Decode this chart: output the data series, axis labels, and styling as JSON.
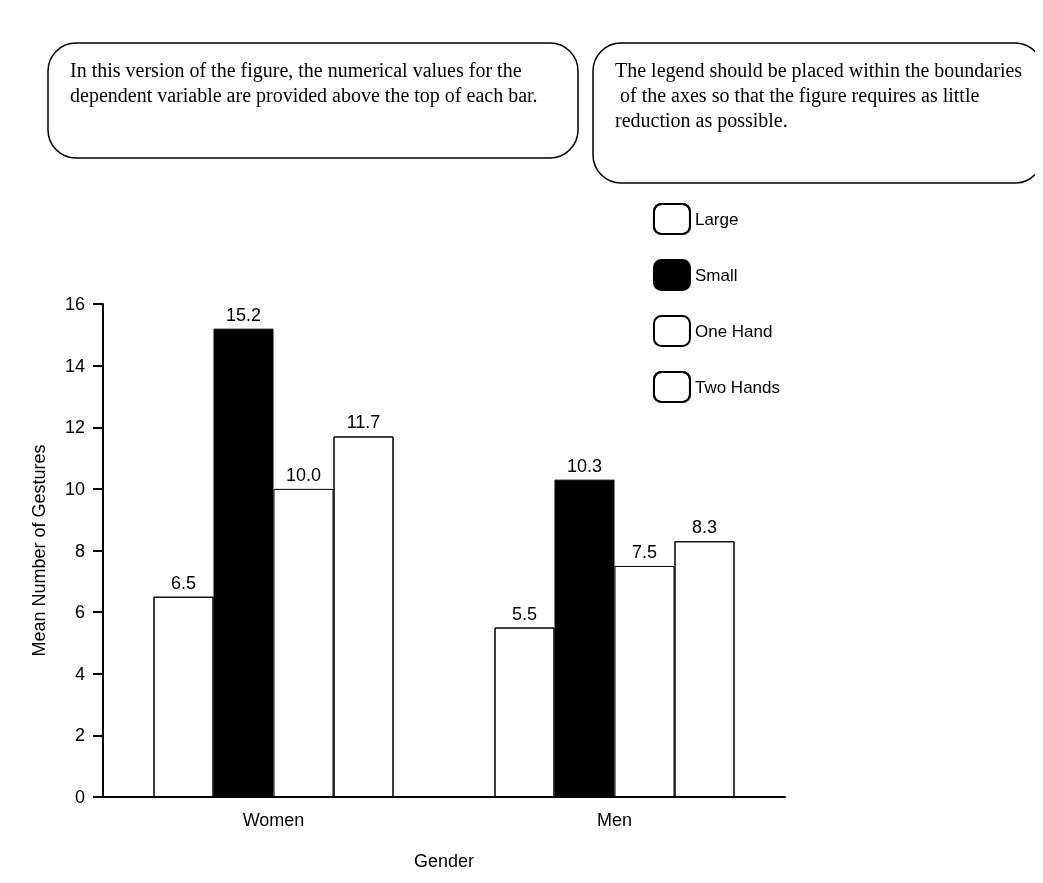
{
  "chart_data": {
    "type": "bar",
    "xlabel": "Gender",
    "ylabel": "Mean Number of Gestures",
    "annotations": [
      "In this version of the figure, the numerical values for the dependent variable are provided above the top of each bar.",
      "The legend should be placed within the boundaries of the axes so that the figure requires as little reduction as possible."
    ],
    "categories": [
      "Women",
      "Men"
    ],
    "series": [
      {
        "name": "Large",
        "color": "#ffffff",
        "values": [
          6.5,
          5.5
        ]
      },
      {
        "name": "Small",
        "color": "#000000",
        "values": [
          15.2,
          10.3
        ]
      },
      {
        "name": "One Hand",
        "color": "#ffffff",
        "values": [
          10.0,
          7.5
        ],
        "value_labels": [
          "10.0",
          "7.5"
        ]
      },
      {
        "name": "Two Hands",
        "color": "#ffffff",
        "values": [
          11.7,
          8.3
        ]
      }
    ],
    "ylim": [
      0,
      16
    ],
    "yticks": [
      0,
      2,
      4,
      6,
      8,
      10,
      12,
      14,
      16
    ],
    "data_labels": true,
    "grid": false,
    "legend": "top right"
  }
}
